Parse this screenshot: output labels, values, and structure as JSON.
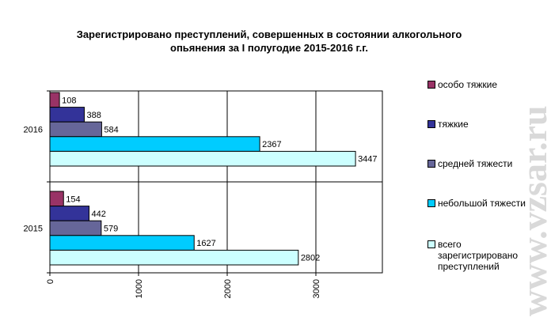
{
  "chart_data": {
    "type": "bar",
    "orientation": "horizontal",
    "title": "Зарегистрировано преступлений, совершенных в состоянии алкогольного опьянения за I полугодие 2015-2016 г.г.",
    "categories": [
      "2016",
      "2015"
    ],
    "series": [
      {
        "name": "особо тяжкие",
        "color": "#993366",
        "values": [
          108,
          154
        ]
      },
      {
        "name": "тяжкие",
        "color": "#333399",
        "values": [
          388,
          442
        ]
      },
      {
        "name": "средней тяжести",
        "color": "#666699",
        "values": [
          584,
          579
        ]
      },
      {
        "name": "небольшой тяжести",
        "color": "#00ccff",
        "values": [
          2367,
          1627
        ]
      },
      {
        "name": "всего зарегистрировано преступлений",
        "color": "#ccffff",
        "values": [
          3447,
          2802
        ]
      }
    ],
    "xlim": [
      0,
      3750
    ],
    "xticks": [
      0,
      1000,
      2000,
      3000
    ],
    "grid": true,
    "legend_position": "right"
  },
  "watermark": "www.vzsar.ru"
}
